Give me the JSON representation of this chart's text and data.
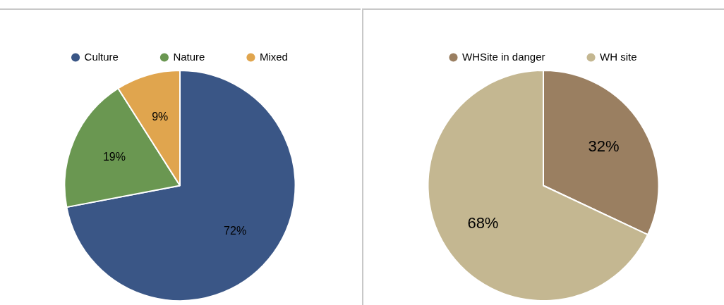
{
  "chart_data": [
    {
      "type": "pie",
      "categories": [
        "Culture",
        "Nature",
        "Mixed"
      ],
      "values": [
        72,
        19,
        9
      ],
      "colors": [
        "#3a5686",
        "#6a9751",
        "#e0a54e"
      ],
      "value_labels": [
        "72%",
        "19%",
        "9%"
      ],
      "legend": "top"
    },
    {
      "type": "pie",
      "categories": [
        "WHSite in danger",
        "WH site"
      ],
      "values": [
        32,
        68
      ],
      "colors": [
        "#9a7f61",
        "#c4b791"
      ],
      "value_labels": [
        "32%",
        "68%"
      ],
      "legend": "top"
    }
  ]
}
